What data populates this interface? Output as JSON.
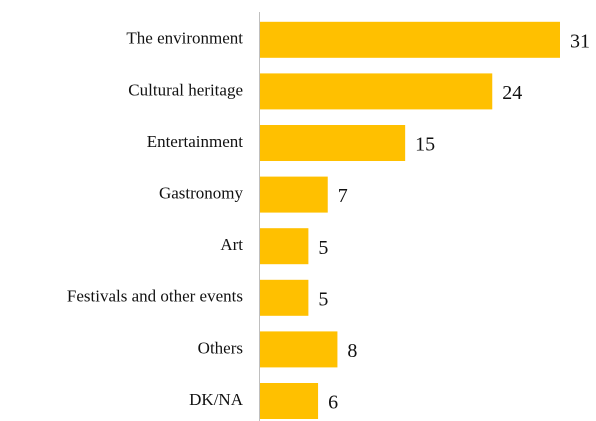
{
  "chart_data": {
    "type": "bar",
    "orientation": "horizontal",
    "categories": [
      "The environment",
      "Cultural heritage",
      "Entertainment",
      "Gastronomy",
      "Art",
      "Festivals and other events",
      "Others",
      "DK/NA"
    ],
    "values": [
      31,
      24,
      15,
      7,
      5,
      5,
      8,
      6
    ],
    "color": "#ffc000"
  }
}
